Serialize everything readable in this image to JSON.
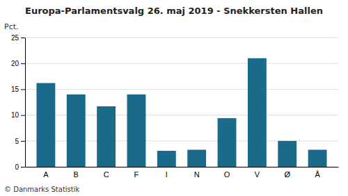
{
  "chart_data": {
    "type": "bar",
    "title": "Europa-Parlamentsvalg 26. maj 2019 - Snekkersten Hallen",
    "categories": [
      "A",
      "B",
      "C",
      "F",
      "I",
      "N",
      "O",
      "V",
      "Ø",
      "Å"
    ],
    "values": [
      16.2,
      14.0,
      11.7,
      14.0,
      3.1,
      3.3,
      9.4,
      21.0,
      5.0,
      3.3
    ],
    "color": "#1a6b8a",
    "ylabel": "Pct.",
    "ylim": [
      0,
      25
    ],
    "yticks": [
      0,
      5,
      10,
      15,
      20,
      25
    ],
    "grid": true,
    "annotations": [
      "© Danmarks Statistik"
    ]
  }
}
